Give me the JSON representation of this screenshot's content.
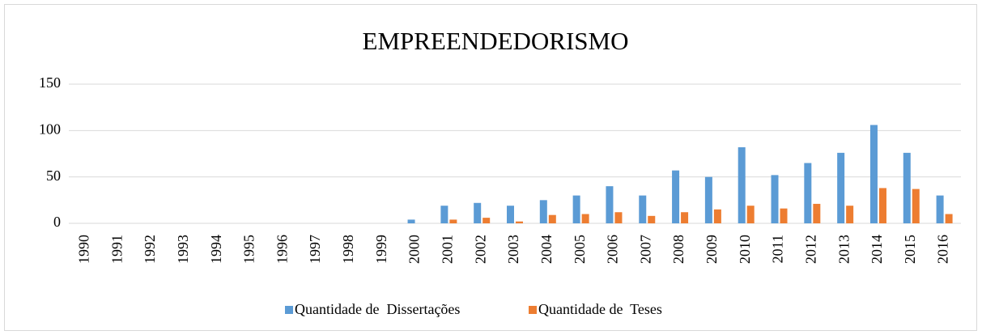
{
  "chart_data": {
    "type": "bar",
    "title": "EMPREENDEDORISMO",
    "categories": [
      "1990",
      "1991",
      "1992",
      "1993",
      "1994",
      "1995",
      "1996",
      "1997",
      "1998",
      "1999",
      "2000",
      "2001",
      "2002",
      "2003",
      "2004",
      "2005",
      "2006",
      "2007",
      "2008",
      "2009",
      "2010",
      "2011",
      "2012",
      "2013",
      "2014",
      "2015",
      "2016"
    ],
    "series": [
      {
        "name": "Quantidade de  Dissertações",
        "color": "#5b9bd5",
        "values": [
          0,
          0,
          0,
          0,
          0,
          0,
          0,
          0,
          0,
          0,
          4,
          19,
          22,
          19,
          25,
          30,
          40,
          30,
          57,
          50,
          82,
          52,
          65,
          76,
          106,
          76,
          30
        ]
      },
      {
        "name": "Quantidade de  Teses",
        "color": "#ed7d31",
        "values": [
          0,
          0,
          0,
          0,
          0,
          0,
          0,
          0,
          0,
          0,
          0,
          4,
          6,
          2,
          9,
          10,
          12,
          8,
          12,
          15,
          19,
          16,
          21,
          19,
          38,
          37,
          10
        ]
      }
    ],
    "ylim": [
      0,
      150
    ],
    "yticks": [
      0,
      50,
      100,
      150
    ],
    "grid": true,
    "legend": "bottom"
  }
}
